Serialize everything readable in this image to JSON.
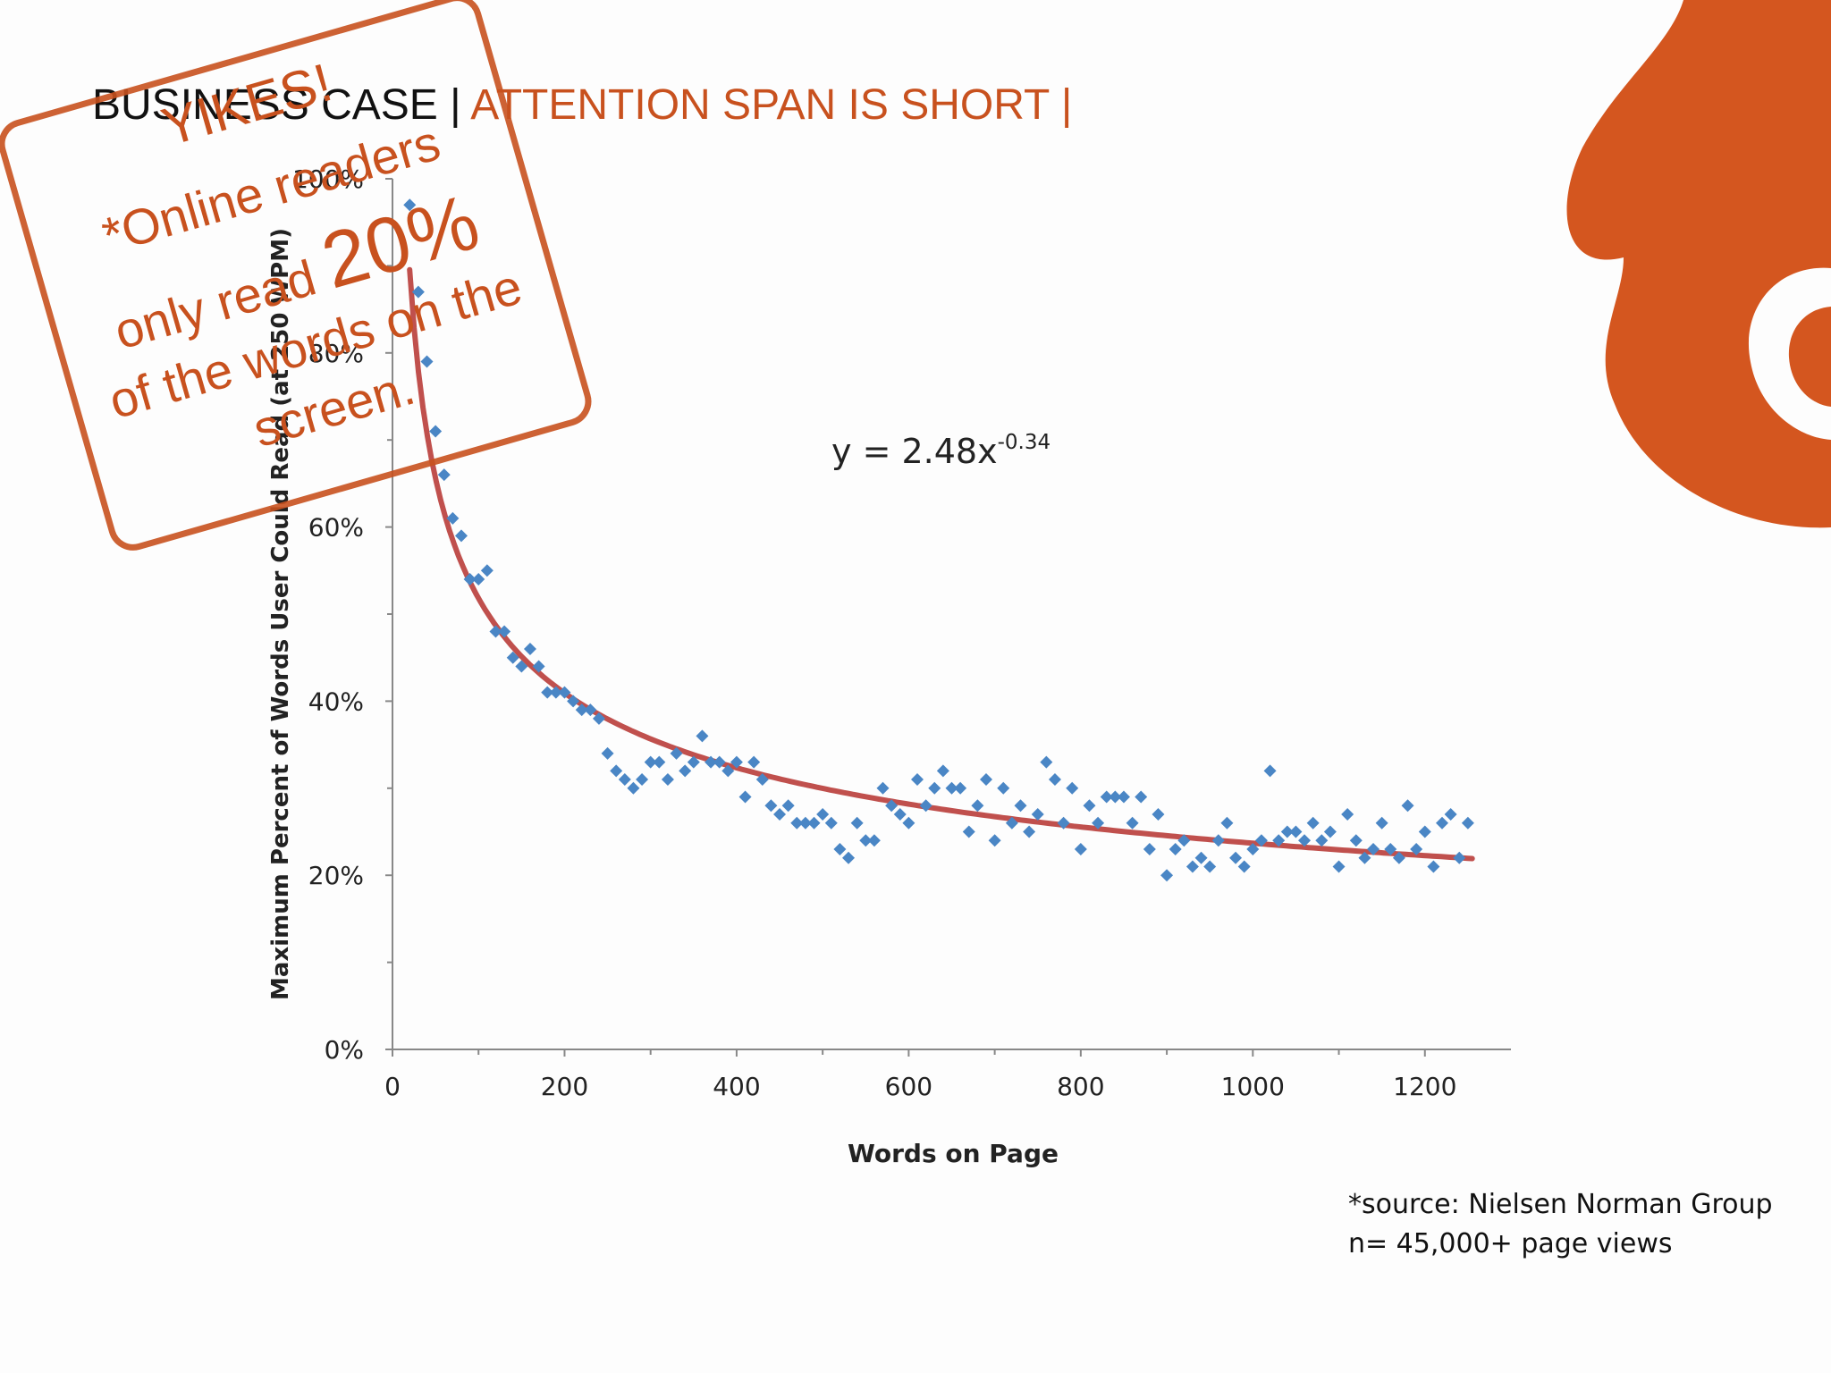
{
  "slide": {
    "title_prefix": "BUSINESS CASE | ",
    "title_highlight": "ATTENTION SPAN IS SHORT |",
    "stamp": {
      "line1": "YIKES!",
      "line2": "*Online readers",
      "line3_pre": "only read ",
      "line3_big": "20%",
      "line4": "of the words on the",
      "line5": "screen."
    },
    "source_line1": "*source: Nielsen Norman Group",
    "source_line2": "n= 45,000+ page views",
    "logo_icon": "flame-c-logo-icon"
  },
  "colors": {
    "accent": "#c8511e",
    "points": "#4a86c5",
    "trend": "#c0504d",
    "logo": "#d4561f"
  },
  "chart_data": {
    "type": "scatter",
    "xlabel": "Words on Page",
    "ylabel": "Maximum Percent of Words User Could Read (at 250 WPM)",
    "annotation": {
      "base": "y = 2.48x",
      "exponent": "-0.34"
    },
    "xlim": [
      0,
      1300
    ],
    "ylim": [
      0,
      1.0
    ],
    "x_ticks": [
      0,
      200,
      400,
      600,
      800,
      1000,
      1200
    ],
    "x_tick_labels": [
      "0",
      "200",
      "400",
      "600",
      "800",
      "1000",
      "1200"
    ],
    "y_ticks": [
      0,
      0.2,
      0.4,
      0.6,
      0.8,
      1.0
    ],
    "y_tick_labels": [
      "0%",
      "20%",
      "40%",
      "60%",
      "80%",
      "100%"
    ],
    "trendline": {
      "a": 2.48,
      "b": -0.34,
      "x_range": [
        20,
        1255
      ]
    },
    "series": [
      {
        "x": [
          20,
          30,
          40,
          50,
          60,
          70,
          80,
          90,
          100,
          110,
          120,
          130,
          140,
          150,
          160,
          170,
          180,
          190,
          200,
          210,
          220,
          230,
          240,
          250,
          260,
          270,
          280,
          290,
          300,
          310,
          320,
          330,
          340,
          350,
          360,
          370,
          380,
          390,
          400,
          410,
          420,
          430,
          440,
          450,
          460,
          470,
          480,
          490,
          500,
          510,
          520,
          530,
          540,
          550,
          560,
          570,
          580,
          590,
          600,
          610,
          620,
          630,
          640,
          650,
          660,
          670,
          680,
          690,
          700,
          710,
          720,
          730,
          740,
          750,
          760,
          770,
          780,
          790,
          800,
          810,
          820,
          830,
          840,
          850,
          860,
          870,
          880,
          890,
          900,
          910,
          920,
          930,
          940,
          950,
          960,
          970,
          980,
          990,
          1000,
          1010,
          1020,
          1030,
          1040,
          1050,
          1060,
          1070,
          1080,
          1090,
          1100,
          1110,
          1120,
          1130,
          1140,
          1150,
          1160,
          1170,
          1180,
          1190,
          1200,
          1210,
          1220,
          1230,
          1240,
          1250
        ],
        "y": [
          0.97,
          0.87,
          0.79,
          0.71,
          0.66,
          0.61,
          0.59,
          0.54,
          0.54,
          0.55,
          0.48,
          0.48,
          0.45,
          0.44,
          0.46,
          0.44,
          0.41,
          0.41,
          0.41,
          0.4,
          0.39,
          0.39,
          0.38,
          0.34,
          0.32,
          0.31,
          0.3,
          0.31,
          0.33,
          0.33,
          0.31,
          0.34,
          0.32,
          0.33,
          0.36,
          0.33,
          0.33,
          0.32,
          0.33,
          0.29,
          0.33,
          0.31,
          0.28,
          0.27,
          0.28,
          0.26,
          0.26,
          0.26,
          0.27,
          0.26,
          0.23,
          0.22,
          0.26,
          0.24,
          0.24,
          0.3,
          0.28,
          0.27,
          0.26,
          0.31,
          0.28,
          0.3,
          0.32,
          0.3,
          0.3,
          0.25,
          0.28,
          0.31,
          0.24,
          0.3,
          0.26,
          0.28,
          0.25,
          0.27,
          0.33,
          0.31,
          0.26,
          0.3,
          0.23,
          0.28,
          0.26,
          0.29,
          0.29,
          0.29,
          0.26,
          0.29,
          0.23,
          0.27,
          0.2,
          0.23,
          0.24,
          0.21,
          0.22,
          0.21,
          0.24,
          0.26,
          0.22,
          0.21,
          0.23,
          0.24,
          0.32,
          0.24,
          0.25,
          0.25,
          0.24,
          0.26,
          0.24,
          0.25,
          0.21,
          0.27,
          0.24,
          0.22,
          0.23,
          0.26,
          0.23,
          0.22,
          0.28,
          0.23,
          0.25,
          0.21,
          0.26,
          0.27,
          0.22,
          0.26
        ]
      }
    ],
    "grid": false,
    "legend": "none"
  }
}
